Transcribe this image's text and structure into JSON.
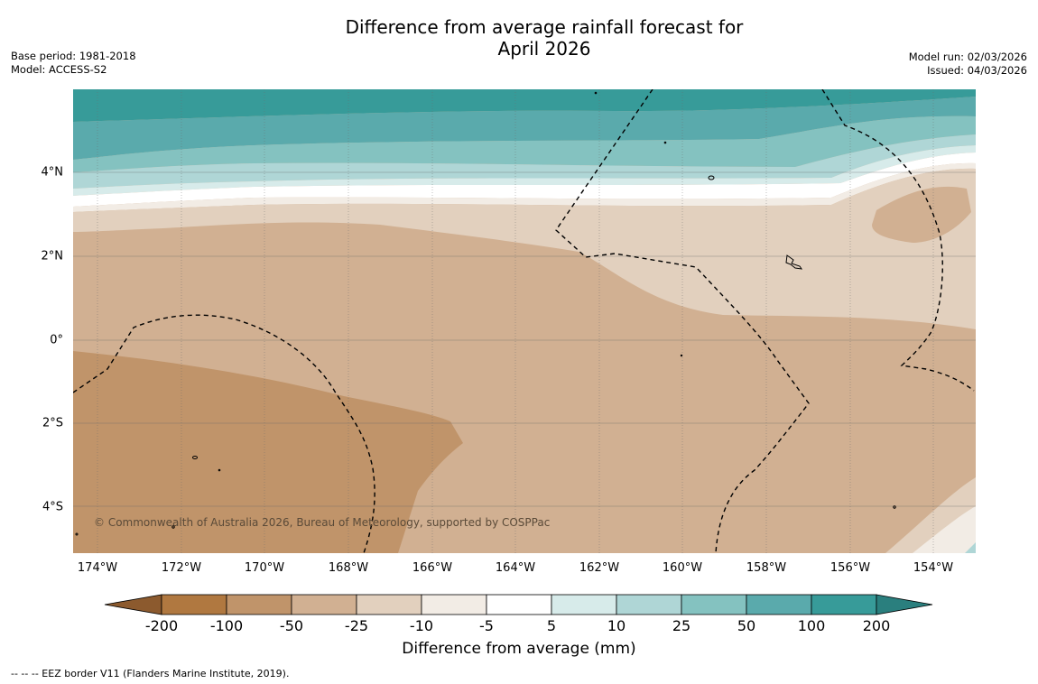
{
  "header": {
    "title_line1": "Difference from average rainfall forecast for",
    "title_line2": "April 2026",
    "base_period": "Base period: 1981-2018",
    "model": "Model: ACCESS-S2",
    "model_run": "Model run: 02/03/2026",
    "issued": "Issued: 04/03/2026"
  },
  "map": {
    "lat_labels": [
      "4°N",
      "2°N",
      "0°",
      "2°S",
      "4°S"
    ],
    "lon_labels": [
      "174°W",
      "172°W",
      "170°W",
      "168°W",
      "166°W",
      "164°W",
      "162°W",
      "160°W",
      "158°W",
      "156°W",
      "154°W"
    ],
    "copyright": "© Commonwealth of Australia 2026, Bureau of Meteorology, supported by COSPPac"
  },
  "colorbar": {
    "ticks": [
      "-200",
      "-100",
      "-50",
      "-25",
      "-10",
      "-5",
      "5",
      "10",
      "25",
      "50",
      "100",
      "200"
    ],
    "colors": [
      "#8c5a2e",
      "#b07840",
      "#c0946a",
      "#d1b092",
      "#e2d0be",
      "#f2ece5",
      "#ffffff",
      "#d7ebea",
      "#afd6d6",
      "#84c2c0",
      "#5aaaac",
      "#379b99",
      "#2a7f7e"
    ],
    "label": "Difference from average (mm)"
  },
  "footer": {
    "eez_note": "--  --  -- EEZ border V11 (Flanders Marine Institute, 2019)."
  }
}
